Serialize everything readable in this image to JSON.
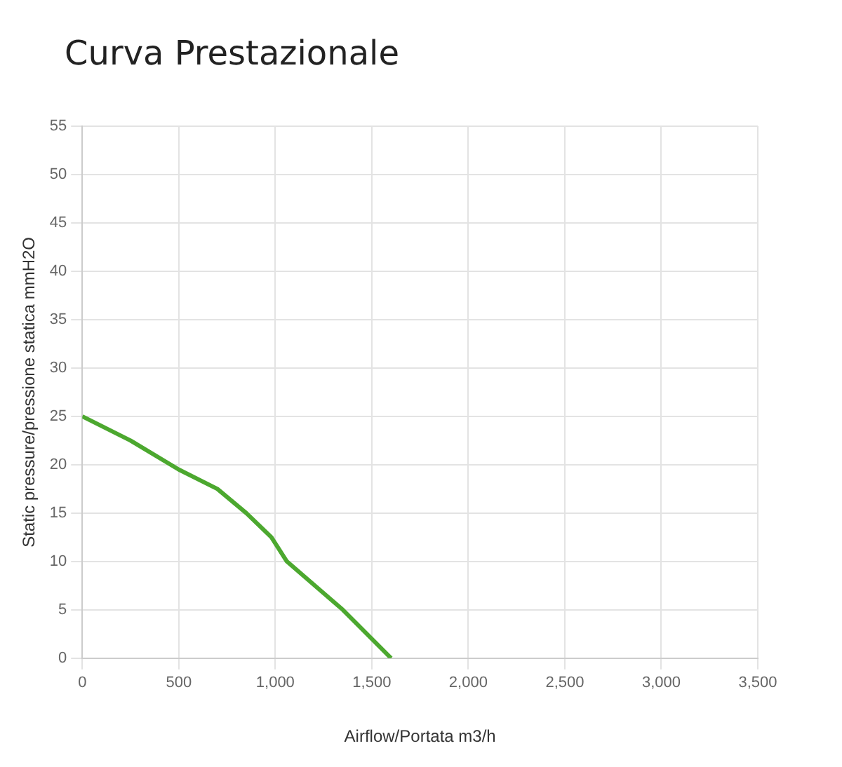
{
  "chart_data": {
    "type": "line",
    "title": "Curva Prestazionale",
    "xlabel": "Airflow/Portata m3/h",
    "ylabel": "Static pressure/pressione statica mmH2O",
    "x": [
      0,
      250,
      500,
      700,
      850,
      980,
      1060,
      1350,
      1600
    ],
    "series": [
      {
        "color": "#4ca82f",
        "values": [
          25,
          22.5,
          19.5,
          17.5,
          15,
          12.5,
          10,
          5,
          0
        ]
      }
    ],
    "xlim": [
      0,
      3500
    ],
    "xticks": [
      0,
      {
        "value": 500,
        "label": "500"
      },
      {
        "value": 1000,
        "label": "1,000"
      },
      {
        "value": 1500,
        "label": "1,500"
      },
      {
        "value": 2000,
        "label": "2,000"
      },
      {
        "value": 2500,
        "label": "2,500"
      },
      {
        "value": 3000,
        "label": "3,000"
      },
      {
        "value": 3500,
        "label": "3,500"
      }
    ],
    "ylim": [
      0,
      55
    ],
    "yticks": [
      0,
      5,
      10,
      15,
      20,
      25,
      30,
      35,
      40,
      45,
      50,
      55
    ],
    "grid": true,
    "legend": false,
    "marker": "none",
    "line_style": "solid"
  }
}
